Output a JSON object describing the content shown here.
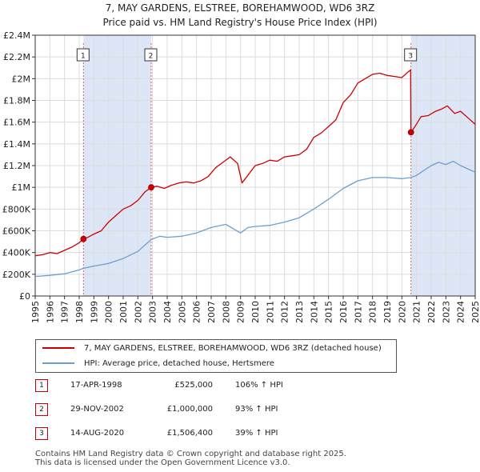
{
  "title_line1": "7, MAY GARDENS, ELSTREE, BOREHAMWOOD, WD6 3RZ",
  "title_line2": "Price paid vs. HM Land Registry's House Price Index (HPI)",
  "colors": {
    "property": "#cc0000",
    "hpi": "#6a9fd4",
    "band": "#dde6f6",
    "marker_line": "#e06060"
  },
  "chart_data": {
    "type": "line",
    "xlim": [
      1995,
      2025
    ],
    "ylim": [
      0,
      2400000
    ],
    "y_ticks": [
      0,
      200000,
      400000,
      600000,
      800000,
      1000000,
      1200000,
      1400000,
      1600000,
      1800000,
      2000000,
      2200000,
      2400000
    ],
    "y_tick_labels": [
      "£0",
      "£200K",
      "£400K",
      "£600K",
      "£800K",
      "£1M",
      "£1.2M",
      "£1.4M",
      "£1.6M",
      "£1.8M",
      "£2M",
      "£2.2M",
      "£2.4M"
    ],
    "x_ticks": [
      1995,
      1996,
      1997,
      1998,
      1999,
      2000,
      2001,
      2002,
      2003,
      2004,
      2005,
      2006,
      2007,
      2008,
      2009,
      2010,
      2011,
      2012,
      2013,
      2014,
      2015,
      2016,
      2017,
      2018,
      2019,
      2020,
      2021,
      2022,
      2023,
      2024,
      2025
    ],
    "x_tick_labels": [
      "1995",
      "1996",
      "1997",
      "1998",
      "1999",
      "2000",
      "2001",
      "2002",
      "2003",
      "2004",
      "2005",
      "2006",
      "2007",
      "2008",
      "2009",
      "2010",
      "2011",
      "2012",
      "2013",
      "2014",
      "2015",
      "2016",
      "2017",
      "2018",
      "2019",
      "2020",
      "2021",
      "2022",
      "2023",
      "2024",
      "2025"
    ],
    "shaded_periods": [
      [
        1998.29,
        2002.91
      ],
      [
        2020.62,
        2025
      ]
    ],
    "series": [
      {
        "name": "7, MAY GARDENS, ELSTREE, BOREHAMWOOD, WD6 3RZ (detached house)",
        "x": [
          1995.0,
          1995.5,
          1996.0,
          1996.5,
          1997.0,
          1997.5,
          1998.0,
          1998.29,
          1998.6,
          1999.0,
          1999.5,
          2000.0,
          2000.5,
          2001.0,
          2001.5,
          2002.0,
          2002.5,
          2002.91,
          2003.3,
          2003.8,
          2004.3,
          2004.8,
          2005.3,
          2005.8,
          2006.3,
          2006.8,
          2007.3,
          2007.8,
          2008.3,
          2008.8,
          2009.1,
          2009.5,
          2010.0,
          2010.5,
          2011.0,
          2011.5,
          2012.0,
          2012.5,
          2013.0,
          2013.5,
          2014.0,
          2014.5,
          2015.0,
          2015.5,
          2016.0,
          2016.5,
          2017.0,
          2017.5,
          2018.0,
          2018.5,
          2019.0,
          2019.5,
          2020.0,
          2020.4,
          2020.6,
          2020.62,
          2020.9,
          2021.3,
          2021.8,
          2022.3,
          2022.7,
          2023.1,
          2023.6,
          2024.0,
          2024.5,
          2025.0
        ],
        "values": [
          370000,
          380000,
          400000,
          390000,
          420000,
          450000,
          490000,
          525000,
          540000,
          570000,
          600000,
          680000,
          740000,
          800000,
          830000,
          880000,
          960000,
          1000000,
          1010000,
          990000,
          1020000,
          1040000,
          1050000,
          1040000,
          1060000,
          1100000,
          1180000,
          1230000,
          1280000,
          1220000,
          1040000,
          1110000,
          1200000,
          1220000,
          1250000,
          1240000,
          1280000,
          1290000,
          1300000,
          1350000,
          1460000,
          1500000,
          1560000,
          1620000,
          1780000,
          1850000,
          1960000,
          2000000,
          2040000,
          2050000,
          2030000,
          2020000,
          2010000,
          2060000,
          2080000,
          1506400,
          1560000,
          1650000,
          1660000,
          1700000,
          1720000,
          1750000,
          1680000,
          1700000,
          1640000,
          1580000
        ]
      },
      {
        "name": "HPI: Average price, detached house, Hertsmere",
        "x": [
          1995.0,
          1996.0,
          1997.0,
          1998.0,
          1998.29,
          1999.0,
          2000.0,
          2001.0,
          2002.0,
          2002.91,
          2003.5,
          2004.0,
          2005.0,
          2006.0,
          2007.0,
          2008.0,
          2009.0,
          2009.5,
          2010.0,
          2011.0,
          2012.0,
          2013.0,
          2014.0,
          2015.0,
          2016.0,
          2017.0,
          2018.0,
          2019.0,
          2020.0,
          2020.62,
          2021.0,
          2022.0,
          2022.5,
          2023.0,
          2023.5,
          2024.0,
          2024.5,
          2025.0
        ],
        "values": [
          180000,
          190000,
          205000,
          240000,
          255000,
          275000,
          300000,
          345000,
          410000,
          520000,
          550000,
          540000,
          550000,
          580000,
          630000,
          660000,
          580000,
          630000,
          640000,
          650000,
          680000,
          720000,
          800000,
          890000,
          990000,
          1060000,
          1090000,
          1090000,
          1080000,
          1090000,
          1110000,
          1200000,
          1230000,
          1210000,
          1240000,
          1200000,
          1170000,
          1140000
        ]
      }
    ],
    "sales": [
      {
        "label": "1",
        "x": 1998.29,
        "y": 525000
      },
      {
        "label": "2",
        "x": 2002.91,
        "y": 1000000
      },
      {
        "label": "3",
        "x": 2020.62,
        "y": 1506400
      }
    ]
  },
  "legend": {
    "property_label": "7, MAY GARDENS, ELSTREE, BOREHAMWOOD, WD6 3RZ (detached house)",
    "hpi_label": "HPI: Average price, detached house, Hertsmere"
  },
  "sales_table": [
    {
      "num": "1",
      "date": "17-APR-1998",
      "price": "£525,000",
      "hpi": "106% ↑ HPI"
    },
    {
      "num": "2",
      "date": "29-NOV-2002",
      "price": "£1,000,000",
      "hpi": "93% ↑ HPI"
    },
    {
      "num": "3",
      "date": "14-AUG-2020",
      "price": "£1,506,400",
      "hpi": "39% ↑ HPI"
    }
  ],
  "footer_line1": "Contains HM Land Registry data © Crown copyright and database right 2025.",
  "footer_line2": "This data is licensed under the Open Government Licence v3.0."
}
